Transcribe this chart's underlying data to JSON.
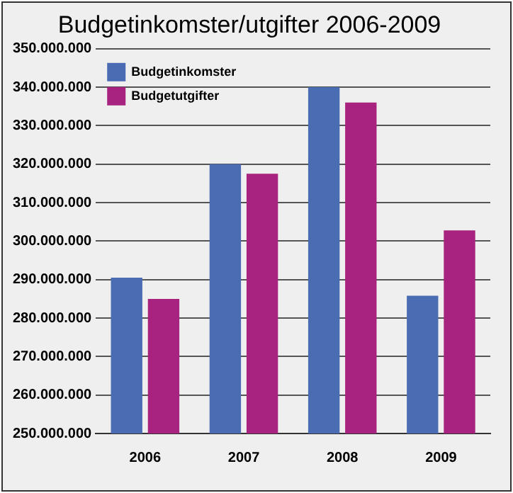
{
  "chart_data": {
    "type": "bar",
    "title": "Budgetinkomster/utgifter 2006-2009",
    "categories": [
      "2006",
      "2007",
      "2008",
      "2009"
    ],
    "series": [
      {
        "name": "Budgetinkomster",
        "color": "#4a6cb3",
        "values": [
          290500000,
          320000000,
          340000000,
          285800000
        ]
      },
      {
        "name": "Budgetutgifter",
        "color": "#a8237f",
        "values": [
          285000000,
          317500000,
          336000000,
          302800000
        ]
      }
    ],
    "ylim": [
      250000000,
      350000000
    ],
    "yticks": [
      {
        "value": 250000000,
        "label": "250.000.000"
      },
      {
        "value": 260000000,
        "label": "260.000.000"
      },
      {
        "value": 270000000,
        "label": "270.000.000"
      },
      {
        "value": 280000000,
        "label": "280.000.000"
      },
      {
        "value": 290000000,
        "label": "290.000.000"
      },
      {
        "value": 300000000,
        "label": "300.000.000"
      },
      {
        "value": 310000000,
        "label": "310.000.000"
      },
      {
        "value": 320000000,
        "label": "320.000.000"
      },
      {
        "value": 330000000,
        "label": "330.000.000"
      },
      {
        "value": 340000000,
        "label": "340.000.000"
      },
      {
        "value": 350000000,
        "label": "350.000.000"
      }
    ],
    "grid": "y",
    "legend": "top left"
  }
}
